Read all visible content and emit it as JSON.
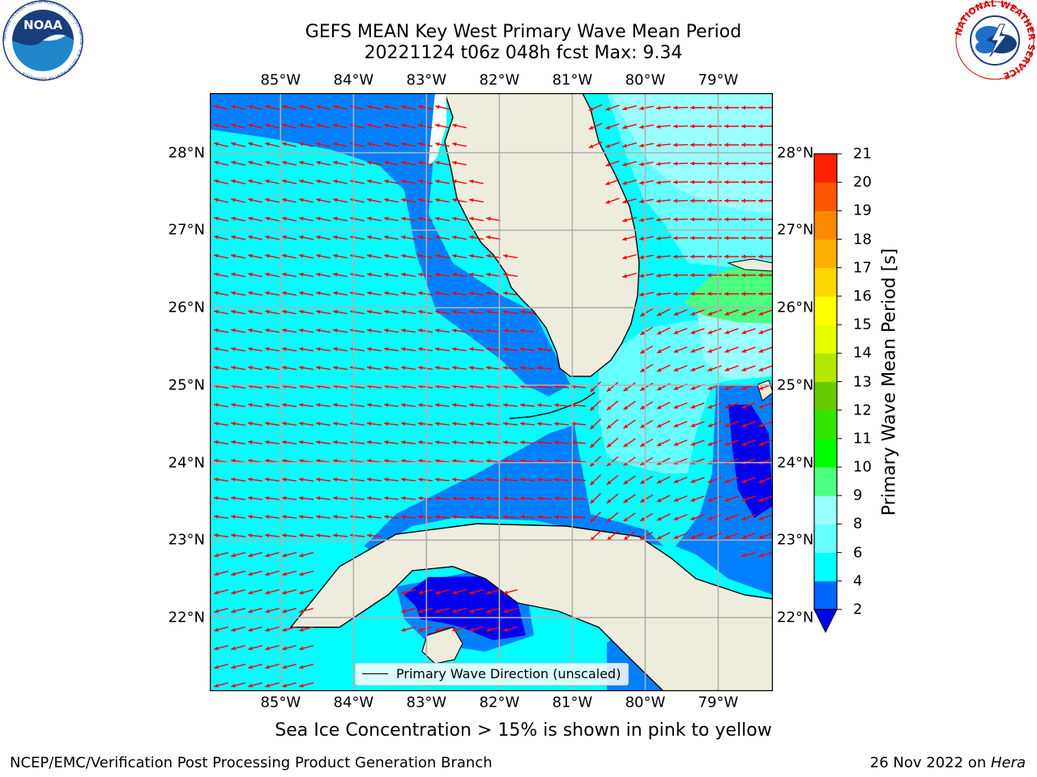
{
  "title": {
    "line1": "GEFS MEAN Key West Primary Wave Mean Period",
    "line2": "20221124 t06z 048h fcst   Max: 9.34"
  },
  "logos": {
    "noaa_text": "NOAA",
    "noaa_ring": "NATIONAL OCEANIC AND ATMOSPHERIC ADMINISTRATION · U.S. DEPARTMENT OF COMMERCE",
    "nws_ring": "NATIONAL WEATHER SERVICE"
  },
  "map": {
    "lon_labels": [
      "85°W",
      "84°W",
      "83°W",
      "82°W",
      "81°W",
      "80°W",
      "79°W"
    ],
    "lat_labels": [
      "28°N",
      "27°N",
      "26°N",
      "25°N",
      "24°N",
      "23°N",
      "22°N"
    ],
    "lon_values": [
      -85,
      -84,
      -83,
      -82,
      -81,
      -80,
      -79
    ],
    "lat_values": [
      28,
      27,
      26,
      25,
      24,
      23,
      22
    ],
    "extent": {
      "lon": [
        -85.97,
        -78.25
      ],
      "lat": [
        21.05,
        28.77
      ]
    },
    "colors": {
      "land": "#eeecdc",
      "coast": "#000000",
      "grid": "#b0b0b0",
      "arrow": "#ff0000",
      "ocean_base": "#00ffff",
      "blue_2_4": "#0080ff",
      "dark_blue_lt2": "#0000ee",
      "light_6_8": "#66ffff",
      "pale_8_9": "#99ffff",
      "green_9_10": "#4dff80"
    }
  },
  "legend": {
    "label": "Primary Wave Direction (unscaled)"
  },
  "colorbar": {
    "label": "Primary Wave Mean Period [s]",
    "ticks": [
      "2",
      "4",
      "6",
      "8",
      "9",
      "10",
      "11",
      "12",
      "13",
      "14",
      "15",
      "16",
      "17",
      "18",
      "19",
      "20",
      "21"
    ],
    "colors": [
      "#0066ff",
      "#00ffff",
      "#66ffff",
      "#99ffff",
      "#4dff80",
      "#00ff00",
      "#33e600",
      "#66cc00",
      "#b3e600",
      "#e6ff00",
      "#ffff00",
      "#ffd700",
      "#ffb000",
      "#ff8800",
      "#ff5500",
      "#ff2200"
    ],
    "extend_color": "#0000ee"
  },
  "caption": "Sea Ice Concentration > 15% is shown in pink to yellow",
  "credit": {
    "left": "NCEP/EMC/Verification Post Processing Product Generation Branch",
    "right_date": "26 Nov 2022 on ",
    "right_host": "Hera"
  }
}
